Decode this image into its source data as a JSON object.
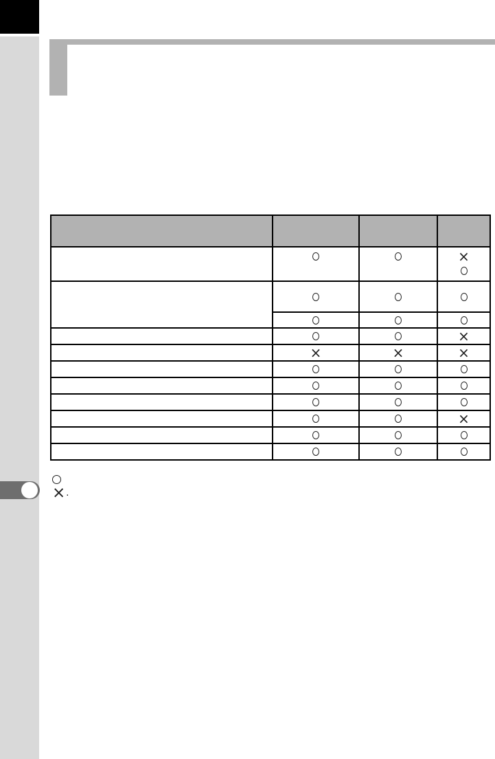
{
  "colors": {
    "page_bg": "#ffffff",
    "corner_block": "#000000",
    "sidebar_bg": "#d9d9d9",
    "heading_bar": "#b2b2b2",
    "table_header_bg": "#b2b2b2",
    "table_border": "#000000",
    "symbol_ink": "#1f1f1f",
    "chapter_tab": "#6e6e6e",
    "chapter_tab_dot": "#ffffff"
  },
  "table": {
    "header_labels": [
      "",
      "",
      "",
      ""
    ],
    "symbol_meaning": {
      "O": "available-circle",
      "X": "not-available-cross"
    },
    "matrix": [
      [
        [],
        [
          "O"
        ],
        [
          "O"
        ],
        [
          "X",
          "O"
        ]
      ],
      [
        [],
        [
          "O"
        ],
        [
          "O"
        ],
        [
          "O"
        ]
      ],
      [
        [
          "O"
        ],
        [
          "O"
        ],
        [
          "O"
        ]
      ],
      [
        [],
        [
          "O"
        ],
        [
          "O"
        ],
        [
          "X"
        ]
      ],
      [
        [],
        [
          "X"
        ],
        [
          "X"
        ],
        [
          "X"
        ]
      ],
      [
        [],
        [
          "O"
        ],
        [
          "O"
        ],
        [
          "O"
        ]
      ],
      [
        [],
        [
          "O"
        ],
        [
          "O"
        ],
        [
          "O"
        ]
      ],
      [
        [],
        [
          "O"
        ],
        [
          "O"
        ],
        [
          "O"
        ]
      ],
      [
        [],
        [
          "O"
        ],
        [
          "O"
        ],
        [
          "X"
        ]
      ],
      [
        [],
        [
          "O"
        ],
        [
          "O"
        ],
        [
          "O"
        ]
      ],
      [
        [],
        [
          "O"
        ],
        [
          "O"
        ],
        [
          "O"
        ]
      ]
    ]
  },
  "legend": {
    "circle_symbol": "O",
    "circle_text": "",
    "cross_symbol": "X",
    "cross_text": "."
  }
}
